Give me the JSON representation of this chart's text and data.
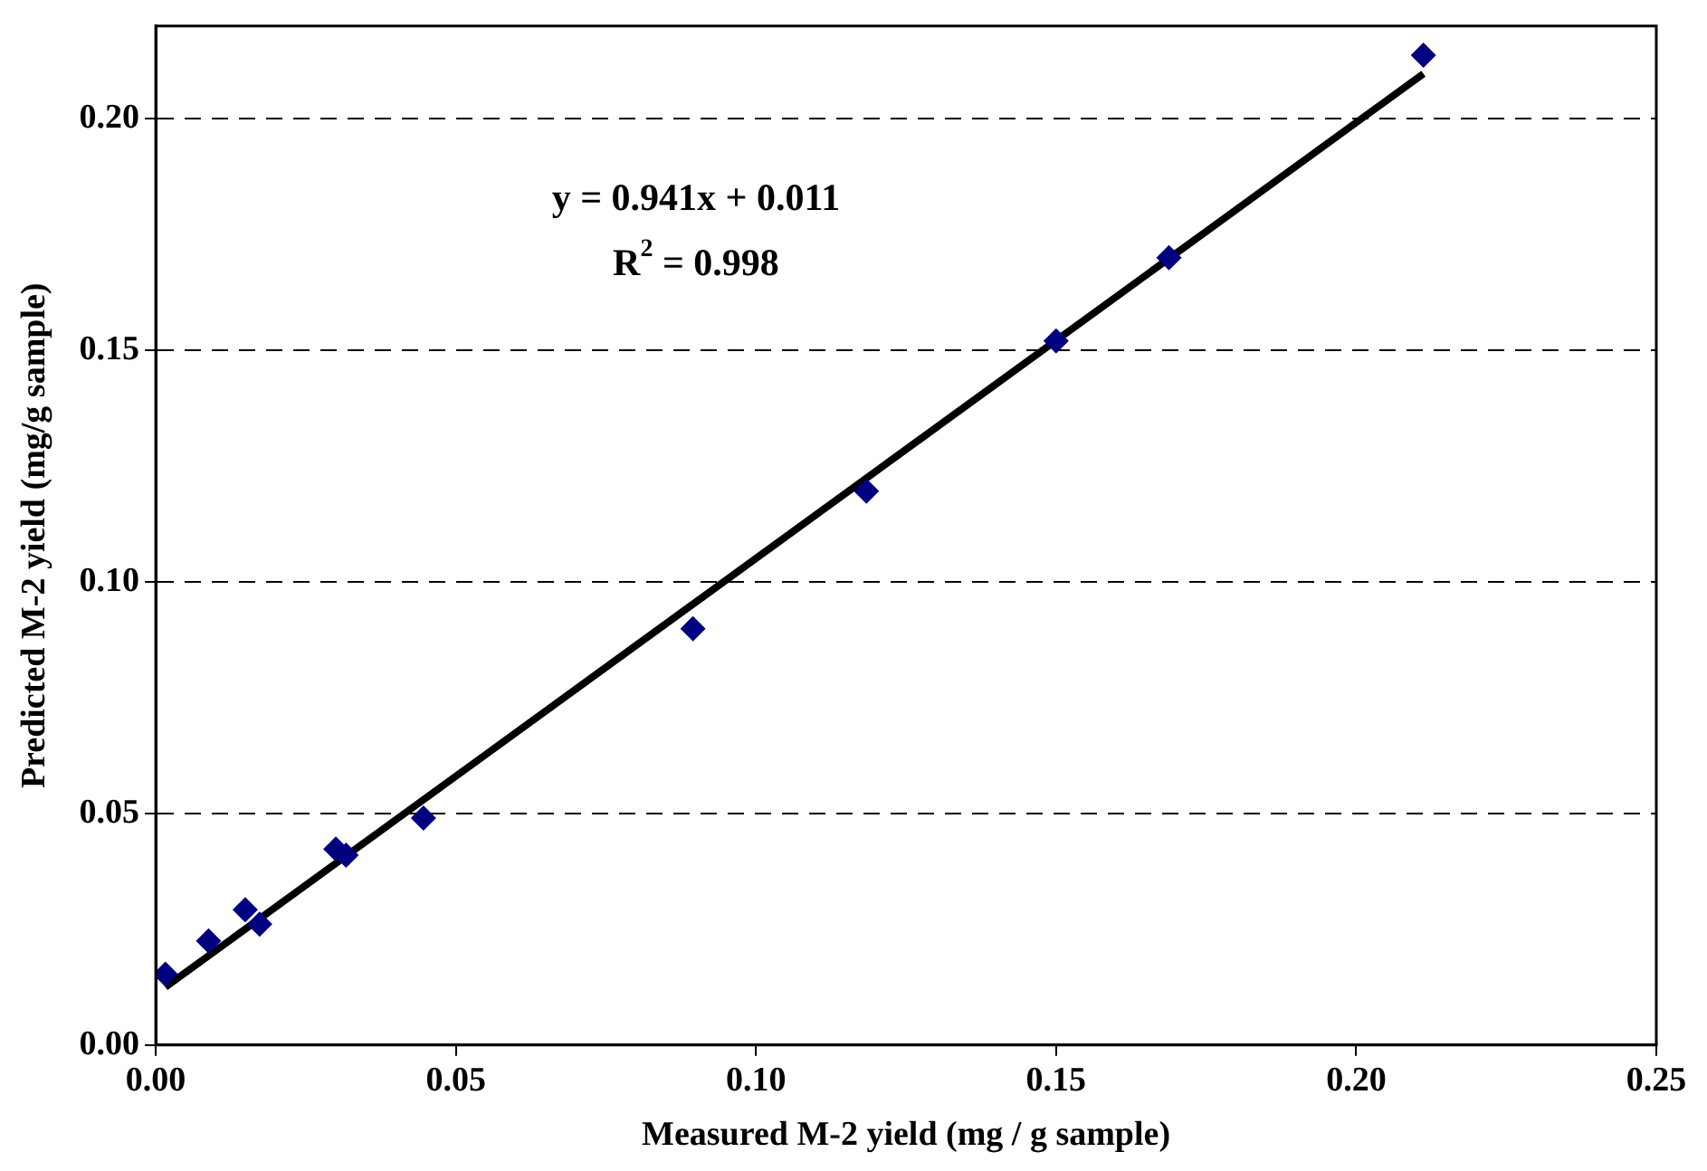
{
  "chart_data": {
    "type": "scatter",
    "xlabel": "Measured M-2 yield (mg / g sample)",
    "ylabel": "Predicted M-2 yield (mg/g sample)",
    "annotations": [
      "y = 0.941x + 0.011",
      "R$^{2}$ = 0.998"
    ],
    "series": [
      {
        "type": "scatter",
        "color": "#000080",
        "marker": "diamond",
        "x": [
          0.0016,
          0.0088,
          0.0149,
          0.0173,
          0.03,
          0.0317,
          0.0446,
          0.0895,
          0.1184,
          0.15,
          0.1688,
          0.2112
        ],
        "values": [
          0.0153,
          0.0225,
          0.0292,
          0.0261,
          0.0423,
          0.041,
          0.049,
          0.0899,
          0.1196,
          0.152,
          0.17,
          0.2137
        ]
      },
      {
        "type": "line",
        "color": "#000000",
        "marker": "none",
        "x": [
          0.0016,
          0.2112
        ],
        "values": [
          0.0125,
          0.2097
        ]
      }
    ],
    "xlim": [
      0,
      0.25
    ],
    "ylim": [
      0,
      0.22
    ],
    "xticks": [
      {
        "value": 0,
        "label": "0.00"
      },
      {
        "value": 0.05,
        "label": "0.05"
      },
      {
        "value": 0.1,
        "label": "0.10"
      },
      {
        "value": 0.15,
        "label": "0.15"
      },
      {
        "value": 0.2,
        "label": "0.20"
      },
      {
        "value": 0.25,
        "label": "0.25"
      }
    ],
    "yticks": [
      {
        "value": 0,
        "label": "0.00"
      },
      {
        "value": 0.05,
        "label": "0.05"
      },
      {
        "value": 0.1,
        "label": "0.10"
      },
      {
        "value": 0.15,
        "label": "0.15"
      },
      {
        "value": 0.2,
        "label": "0.20"
      }
    ],
    "grid": "y"
  }
}
